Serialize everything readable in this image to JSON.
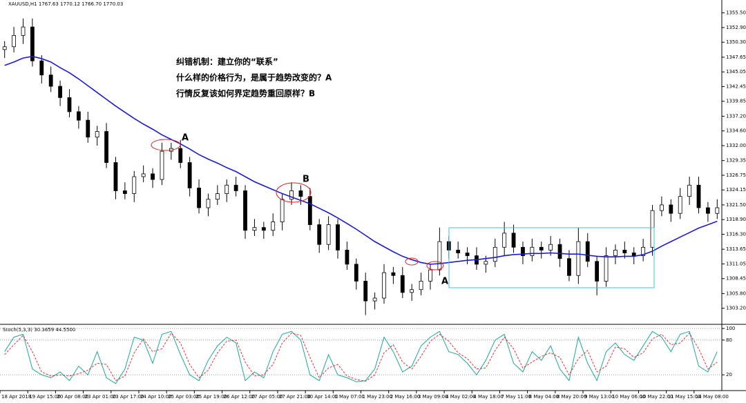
{
  "chart_data": [
    {
      "type": "candlestick",
      "title": "XAUUSD,H1  1767.63 1770.12 1766.70 1770.03",
      "annotations": [
        "纠错机制：建立你的“联系”",
        "什么样的价格行为，是属于趋势改变的？A",
        "行情反复该如何界定趋势重回原样？B",
        "A",
        "B",
        "A"
      ],
      "categories": [
        "18 Apr 2018",
        null,
        null,
        "19 Apr 15:00",
        null,
        null,
        "20 Apr 08:00",
        null,
        null,
        "23 Apr 01:00",
        null,
        null,
        "23 Apr 17:00",
        null,
        null,
        "24 Apr 10:00",
        null,
        null,
        "25 Apr 03:00",
        null,
        null,
        "25 Apr 19:00",
        null,
        null,
        "26 Apr 12:00",
        null,
        null,
        "27 Apr 05:00",
        null,
        null,
        "27 Apr 21:00",
        null,
        null,
        "30 Apr 14:00",
        null,
        null,
        "1 May 07:00",
        null,
        null,
        "1 May 23:00",
        null,
        null,
        "2 May 16:00",
        null,
        null,
        "3 May 09:00",
        null,
        null,
        "4 May 02:00",
        null,
        null,
        "4 May 18:00",
        null,
        null,
        "7 May 11:00",
        null,
        null,
        "8 May 04:00",
        null,
        null,
        "8 May 20:00",
        null,
        null,
        "9 May 13:00",
        null,
        null,
        "10 May 06:00",
        null,
        null,
        "10 May 22:00",
        null,
        null,
        "11 May 15:00",
        null,
        null,
        "14 May 08:00",
        null,
        null
      ],
      "open": [
        1349.0,
        1349.5,
        1351.5,
        1353.0,
        1347.0,
        1344.5,
        1342.5,
        1340.5,
        1338.0,
        1336.5,
        1333.5,
        1334.5,
        1329.0,
        1324.0,
        1323.5,
        1326.5,
        1327.0,
        1326.0,
        1331.0,
        1331.5,
        1329.0,
        1324.5,
        1321.0,
        1322.5,
        1323.5,
        1325.0,
        1324.0,
        1317.0,
        1317.5,
        1317.0,
        1318.5,
        1322.5,
        1324.0,
        1323.0,
        1318.0,
        1314.5,
        1318.0,
        1313.5,
        1311.0,
        1308.0,
        1304.5,
        1305.0,
        1309.5,
        1309.0,
        1306.0,
        1306.5,
        1308.0,
        1310.0,
        1315.0,
        1313.5,
        1313.0,
        1312.5,
        1311.0,
        1311.5,
        1314.0,
        1316.5,
        1314.0,
        1312.5,
        1314.0,
        1313.5,
        1314.5,
        1312.0,
        1309.0,
        1315.0,
        1311.5,
        1308.0,
        1312.5,
        1313.5,
        1313.0,
        1312.5,
        1314.0,
        1320.5,
        1321.5,
        1320.0,
        1323.0,
        1325.0,
        1321.0,
        1320.0
      ],
      "high": [
        1350.5,
        1353.0,
        1354.5,
        1354.5,
        1348.0,
        1346.0,
        1343.5,
        1342.0,
        1339.0,
        1338.0,
        1335.5,
        1336.0,
        1330.0,
        1325.5,
        1327.5,
        1328.5,
        1328.0,
        1332.5,
        1332.5,
        1333.0,
        1330.0,
        1326.0,
        1323.5,
        1325.0,
        1326.0,
        1326.5,
        1325.0,
        1319.0,
        1318.5,
        1320.0,
        1323.5,
        1325.5,
        1325.0,
        1324.5,
        1319.0,
        1319.5,
        1319.0,
        1315.0,
        1312.0,
        1309.5,
        1306.0,
        1311.0,
        1310.5,
        1310.5,
        1307.5,
        1309.5,
        1311.0,
        1317.5,
        1316.0,
        1315.0,
        1314.0,
        1314.0,
        1312.5,
        1315.5,
        1318.5,
        1318.0,
        1315.0,
        1315.5,
        1315.0,
        1316.0,
        1315.5,
        1313.5,
        1317.5,
        1316.5,
        1312.5,
        1314.0,
        1314.5,
        1315.0,
        1314.0,
        1315.5,
        1321.5,
        1323.0,
        1322.5,
        1324.5,
        1326.5,
        1326.5,
        1322.0,
        1322.5
      ],
      "low": [
        1347.5,
        1348.5,
        1350.0,
        1346.0,
        1343.0,
        1341.5,
        1339.0,
        1337.0,
        1335.0,
        1332.5,
        1332.0,
        1328.0,
        1322.5,
        1322.5,
        1322.0,
        1325.5,
        1324.5,
        1325.0,
        1329.5,
        1328.0,
        1323.0,
        1320.0,
        1319.5,
        1321.5,
        1322.0,
        1323.0,
        1315.5,
        1316.0,
        1315.5,
        1316.0,
        1317.0,
        1321.5,
        1321.5,
        1317.0,
        1313.0,
        1313.5,
        1312.0,
        1310.0,
        1306.5,
        1302.0,
        1303.0,
        1304.0,
        1307.5,
        1305.0,
        1304.5,
        1305.5,
        1306.5,
        1309.0,
        1312.0,
        1312.0,
        1311.0,
        1310.0,
        1309.5,
        1310.5,
        1312.5,
        1313.0,
        1311.0,
        1311.5,
        1312.0,
        1312.5,
        1310.5,
        1308.0,
        1307.5,
        1310.5,
        1305.5,
        1307.0,
        1311.0,
        1312.0,
        1311.0,
        1311.5,
        1312.5,
        1319.5,
        1318.5,
        1319.0,
        1321.5,
        1320.0,
        1318.5,
        1319.0
      ],
      "close": [
        1349.5,
        1351.5,
        1353.0,
        1347.0,
        1344.5,
        1342.5,
        1340.5,
        1338.0,
        1336.5,
        1333.5,
        1334.5,
        1329.0,
        1324.0,
        1323.5,
        1326.5,
        1327.0,
        1326.0,
        1331.0,
        1331.5,
        1329.0,
        1324.5,
        1321.0,
        1322.5,
        1323.5,
        1325.0,
        1324.0,
        1317.0,
        1317.5,
        1317.0,
        1318.5,
        1322.5,
        1324.0,
        1323.0,
        1318.0,
        1314.5,
        1318.0,
        1313.5,
        1311.0,
        1308.0,
        1304.5,
        1305.0,
        1309.5,
        1309.0,
        1306.0,
        1306.5,
        1308.0,
        1310.0,
        1315.0,
        1313.5,
        1313.0,
        1312.5,
        1311.0,
        1311.5,
        1314.0,
        1316.5,
        1314.0,
        1312.5,
        1314.0,
        1313.5,
        1314.5,
        1312.0,
        1309.0,
        1315.0,
        1311.5,
        1308.0,
        1312.5,
        1313.5,
        1313.0,
        1312.5,
        1314.0,
        1320.5,
        1321.5,
        1320.0,
        1323.0,
        1325.0,
        1321.0,
        1320.0,
        1321.0
      ],
      "color": "#000000",
      "line_series": [
        {
          "color": "#1a1ad0",
          "values": [
            1346.2,
            1346.8,
            1347.5,
            1347.8,
            1347.4,
            1346.8,
            1345.8,
            1344.9,
            1343.8,
            1342.6,
            1341.4,
            1340.2,
            1339.0,
            1337.9,
            1336.8,
            1335.8,
            1334.9,
            1333.9,
            1333.1,
            1332.3,
            1331.4,
            1330.4,
            1329.6,
            1328.9,
            1328.1,
            1327.4,
            1326.5,
            1325.6,
            1324.9,
            1324.2,
            1323.5,
            1322.9,
            1322.3,
            1321.7,
            1320.9,
            1320.1,
            1319.2,
            1318.2,
            1317.2,
            1316.1,
            1315.0,
            1314.1,
            1313.2,
            1312.4,
            1311.8,
            1311.3,
            1311.0,
            1311.1,
            1311.3,
            1311.5,
            1311.7,
            1311.8,
            1312.0,
            1312.2,
            1312.5,
            1312.7,
            1312.8,
            1312.9,
            1312.9,
            1313.0,
            1312.9,
            1312.8,
            1312.8,
            1312.6,
            1312.4,
            1312.3,
            1312.3,
            1312.4,
            1312.4,
            1312.7,
            1313.3,
            1314.2,
            1315.0,
            1315.8,
            1316.6,
            1317.4,
            1318.0,
            1318.6
          ]
        }
      ],
      "ylim": [
        1300.6,
        1356.8
      ],
      "yticks": [
        {
          "value": 1355.5,
          "label": "1355.50"
        },
        {
          "value": 1352.9,
          "label": "1352.90"
        },
        {
          "value": 1350.3,
          "label": "1350.30"
        },
        1347.65,
        1345.05,
        1342.45,
        1339.85,
        {
          "value": 1337.2,
          "label": "1337.20"
        },
        {
          "value": 1334.6,
          "label": "1334.60"
        },
        {
          "value": 1332,
          "label": "1332.00"
        },
        1329.35,
        1326.75,
        1324.15,
        {
          "value": 1321.5,
          "label": "1321.50"
        },
        {
          "value": 1318.9,
          "label": "1318.90"
        },
        {
          "value": 1316.3,
          "label": "1316.30"
        },
        1313.65,
        1311.05,
        1308.45,
        {
          "value": 1305.8,
          "label": "1305.80"
        },
        {
          "value": 1303.2,
          "label": "1303.20"
        }
      ],
      "grid": false
    },
    {
      "type": "line",
      "title": "Stoch(5,3,3) 30.3659 44.5500",
      "series": [
        {
          "color": "#1aa89a",
          "dash": false,
          "values": [
            60,
            85,
            90,
            30,
            20,
            15,
            25,
            10,
            35,
            20,
            60,
            15,
            5,
            30,
            85,
            80,
            40,
            90,
            95,
            55,
            20,
            10,
            45,
            70,
            85,
            75,
            10,
            25,
            15,
            60,
            90,
            95,
            80,
            20,
            10,
            55,
            20,
            15,
            8,
            10,
            30,
            85,
            60,
            25,
            35,
            70,
            85,
            95,
            60,
            55,
            40,
            20,
            45,
            80,
            90,
            40,
            25,
            60,
            45,
            70,
            30,
            10,
            85,
            40,
            10,
            60,
            75,
            55,
            45,
            70,
            95,
            85,
            60,
            90,
            95,
            35,
            25,
            60
          ]
        },
        {
          "color": "#e03030",
          "dash": true,
          "values": [
            55,
            72,
            88,
            60,
            25,
            18,
            20,
            18,
            22,
            28,
            40,
            38,
            10,
            18,
            58,
            82,
            60,
            65,
            92,
            75,
            38,
            15,
            28,
            58,
            78,
            80,
            42,
            18,
            20,
            38,
            75,
            92,
            88,
            50,
            15,
            32,
            38,
            18,
            12,
            9,
            20,
            58,
            72,
            42,
            30,
            52,
            78,
            90,
            78,
            58,
            48,
            30,
            32,
            62,
            85,
            65,
            32,
            42,
            52,
            58,
            50,
            20,
            48,
            62,
            25,
            35,
            68,
            65,
            50,
            58,
            82,
            90,
            72,
            75,
            92,
            65,
            30,
            42
          ]
        }
      ],
      "ylim": [
        0,
        100
      ],
      "yticks": [
        100,
        80,
        20
      ],
      "grid": true
    }
  ]
}
